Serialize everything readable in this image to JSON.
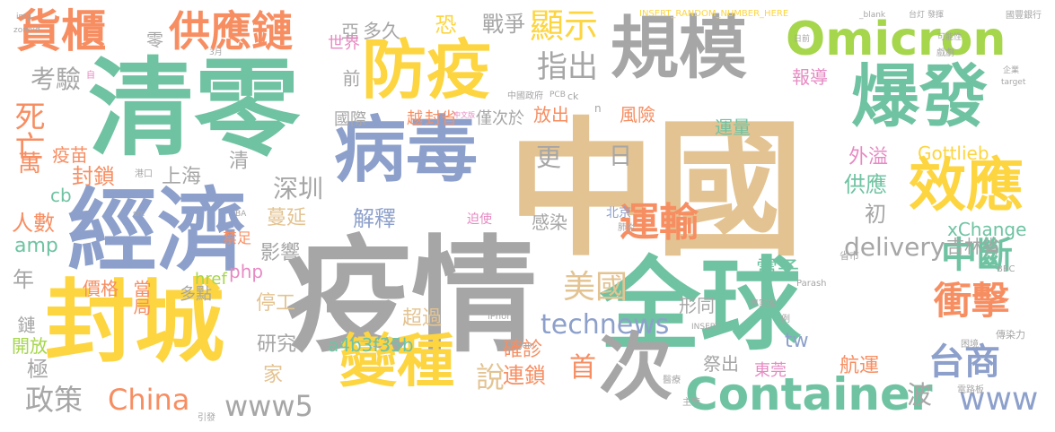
{
  "palette": {
    "tan": "#e3c391",
    "green": "#6fc3a2",
    "gray": "#a6a6a6",
    "blue": "#8da0cb",
    "yellow": "#fdd540",
    "orange": "#f78e62",
    "lime": "#a5d64b",
    "pink": "#e78ac3"
  },
  "words": [
    {
      "text": "中國",
      "color": "tan"
    },
    {
      "text": "疫情",
      "color": "gray"
    },
    {
      "text": "清零",
      "color": "green"
    },
    {
      "text": "全球",
      "color": "green"
    },
    {
      "text": "經濟",
      "color": "blue"
    },
    {
      "text": "封城",
      "color": "yellow"
    },
    {
      "text": "病毒",
      "color": "blue"
    },
    {
      "text": "防疫",
      "color": "yellow"
    },
    {
      "text": "規模",
      "color": "gray"
    },
    {
      "text": "爆發",
      "color": "green"
    },
    {
      "text": "Omicron",
      "color": "lime"
    },
    {
      "text": "變種",
      "color": "yellow"
    },
    {
      "text": "次",
      "color": "gray"
    },
    {
      "text": "效應",
      "color": "yellow"
    },
    {
      "text": "Container",
      "color": "green"
    },
    {
      "text": "貨櫃",
      "color": "orange"
    },
    {
      "text": "供應鏈",
      "color": "orange"
    },
    {
      "text": "運輸",
      "color": "orange"
    },
    {
      "text": "中斷",
      "color": "green"
    },
    {
      "text": "衝擊",
      "color": "orange"
    },
    {
      "text": "台商",
      "color": "blue"
    },
    {
      "text": "美國",
      "color": "tan"
    },
    {
      "text": "technews",
      "color": "blue"
    },
    {
      "text": "China",
      "color": "orange"
    },
    {
      "text": "www5",
      "color": "gray"
    },
    {
      "text": "www",
      "color": "blue"
    },
    {
      "text": "顯示",
      "color": "yellow"
    },
    {
      "text": "指出",
      "color": "gray"
    },
    {
      "text": "死亡",
      "color": "orange"
    },
    {
      "text": "政策",
      "color": "gray"
    },
    {
      "text": "說",
      "color": "tan"
    },
    {
      "text": "首",
      "color": "orange"
    },
    {
      "text": "delivery",
      "color": "gray"
    },
    {
      "text": "深圳",
      "color": "gray"
    },
    {
      "text": "考驗",
      "color": "gray"
    },
    {
      "text": "戰爭",
      "color": "gray"
    },
    {
      "text": "多久",
      "color": "gray"
    },
    {
      "text": "亞",
      "color": "gray"
    },
    {
      "text": "恐",
      "color": "yellow"
    },
    {
      "text": "零",
      "color": "gray"
    },
    {
      "text": "世界",
      "color": "pink"
    },
    {
      "text": "國際",
      "color": "gray"
    },
    {
      "text": "前",
      "color": "gray"
    },
    {
      "text": "越",
      "color": "orange"
    },
    {
      "text": "封省",
      "color": "orange"
    },
    {
      "text": "僅次於",
      "color": "gray"
    },
    {
      "text": "放出",
      "color": "orange"
    },
    {
      "text": "風險",
      "color": "orange"
    },
    {
      "text": "報導",
      "color": "pink"
    },
    {
      "text": "更",
      "color": "gray"
    },
    {
      "text": "日",
      "color": "gray"
    },
    {
      "text": "萬",
      "color": "orange"
    },
    {
      "text": "疫苗",
      "color": "orange"
    },
    {
      "text": "封鎖",
      "color": "orange"
    },
    {
      "text": "上海",
      "color": "gray"
    },
    {
      "text": "清",
      "color": "gray"
    },
    {
      "text": "蔓延",
      "color": "tan"
    },
    {
      "text": "外溢",
      "color": "pink"
    },
    {
      "text": "Gottlieb",
      "color": "yellow"
    },
    {
      "text": "供應",
      "color": "green"
    },
    {
      "text": "初",
      "color": "gray"
    },
    {
      "text": "cb",
      "color": "green"
    },
    {
      "text": "人數",
      "color": "orange"
    },
    {
      "text": "amp",
      "color": "green"
    },
    {
      "text": "解釋",
      "color": "blue"
    },
    {
      "text": "影響",
      "color": "gray"
    },
    {
      "text": "感染",
      "color": "gray"
    },
    {
      "text": "運量",
      "color": "green"
    },
    {
      "text": "電子",
      "color": "green"
    },
    {
      "text": "xChange",
      "color": "green"
    },
    {
      "text": "吉林省",
      "color": "gray"
    },
    {
      "text": "年",
      "color": "gray"
    },
    {
      "text": "php",
      "color": "pink"
    },
    {
      "text": "價格",
      "color": "orange"
    },
    {
      "text": "當局",
      "color": "orange"
    },
    {
      "text": "多點",
      "color": "gray"
    },
    {
      "text": "href",
      "color": "lime"
    },
    {
      "text": "停工",
      "color": "tan"
    },
    {
      "text": "超過",
      "color": "tan"
    },
    {
      "text": "形同",
      "color": "gray"
    },
    {
      "text": "鏈",
      "color": "gray"
    },
    {
      "text": "開放",
      "color": "lime"
    },
    {
      "text": "研究",
      "color": "gray"
    },
    {
      "text": "a4b3f35b",
      "color": "green"
    },
    {
      "text": "tw",
      "color": "blue"
    },
    {
      "text": "極",
      "color": "gray"
    },
    {
      "text": "家",
      "color": "tan"
    },
    {
      "text": "確診",
      "color": "orange"
    },
    {
      "text": "航運",
      "color": "orange"
    },
    {
      "text": "東莞",
      "color": "pink"
    },
    {
      "text": "連鎖",
      "color": "orange"
    },
    {
      "text": "祭出",
      "color": "gray"
    },
    {
      "text": "波",
      "color": "gray"
    },
    {
      "text": "北京",
      "color": "blue"
    },
    {
      "text": "迫使",
      "color": "pink"
    },
    {
      "text": "禁足",
      "color": "orange"
    },
    {
      "text": "INSERT_RANDOM_NUMBER_HERE",
      "color": "yellow"
    },
    {
      "text": "zoneid",
      "color": "gray"
    },
    {
      "text": "img",
      "color": "gray"
    },
    {
      "text": "_blank",
      "color": "gray"
    },
    {
      "text": "台灯",
      "color": "gray"
    },
    {
      "text": "發揮",
      "color": "gray"
    },
    {
      "text": "國豐銀行",
      "color": "gray"
    },
    {
      "text": "日前",
      "color": "gray"
    },
    {
      "text": "可能性",
      "color": "gray"
    },
    {
      "text": "企業",
      "color": "gray"
    },
    {
      "text": "target",
      "color": "gray"
    },
    {
      "text": "PCB",
      "color": "gray"
    },
    {
      "text": "ck",
      "color": "gray"
    },
    {
      "text": "n",
      "color": "gray"
    },
    {
      "text": "中文版",
      "color": "pink"
    },
    {
      "text": "iPhone",
      "color": "gray"
    },
    {
      "text": "BBC",
      "color": "gray"
    },
    {
      "text": "Parash",
      "color": "gray"
    },
    {
      "text": "INSERT",
      "color": "gray"
    },
    {
      "text": "src",
      "color": "gray"
    },
    {
      "text": "BA",
      "color": "gray"
    },
    {
      "text": "Jain",
      "color": "gray"
    },
    {
      "text": "自",
      "color": "pink"
    },
    {
      "text": "3月",
      "color": "gray"
    },
    {
      "text": "中國政府",
      "color": "gray"
    },
    {
      "text": "傳染力",
      "color": "gray"
    },
    {
      "text": "專家組",
      "color": "gray"
    },
    {
      "text": "省市",
      "color": "gray"
    },
    {
      "text": "港口",
      "color": "gray"
    },
    {
      "text": "引發",
      "color": "gray"
    },
    {
      "text": "醫療",
      "color": "gray"
    },
    {
      "text": "困境",
      "color": "gray"
    },
    {
      "text": "電路板",
      "color": "gray"
    },
    {
      "text": "戲劇",
      "color": "gray"
    },
    {
      "text": "主管",
      "color": "gray"
    },
    {
      "text": "例",
      "color": "gray"
    },
    {
      "text": "肺炎",
      "color": "gray"
    }
  ]
}
